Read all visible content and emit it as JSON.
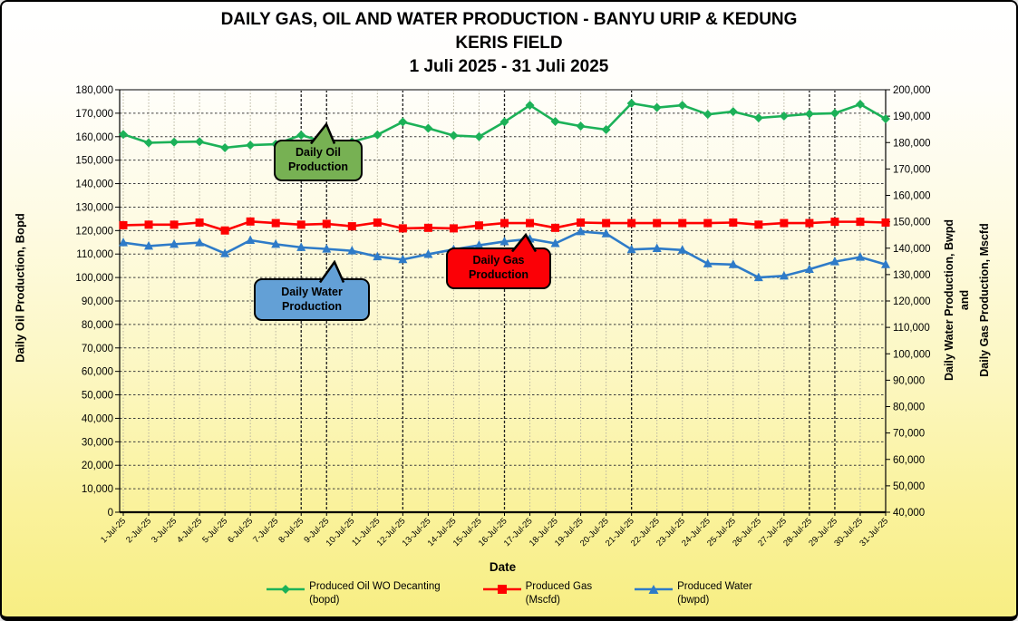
{
  "title": {
    "line1": "DAILY  GAS, OIL AND WATER PRODUCTION  - BANYU URIP & KEDUNG",
    "line2": "KERIS FIELD",
    "line3": "1 Juli 2025 - 31 Juli 2025"
  },
  "chart_data": {
    "type": "line",
    "title": "DAILY GAS, OIL AND WATER PRODUCTION - BANYU URIP & KEDUNG KERIS FIELD, 1 Juli 2025 - 31 Juli 2025",
    "xlabel": "Date",
    "x_categories": [
      "1-Jul-25",
      "2-Jul-25",
      "3-Jul-25",
      "4-Jul-25",
      "5-Jul-25",
      "6-Jul-25",
      "7-Jul-25",
      "8-Jul-25",
      "9-Jul-25",
      "10-Jul-25",
      "11-Jul-25",
      "12-Jul-25",
      "13-Jul-25",
      "14-Jul-25",
      "15-Jul-25",
      "16-Jul-25",
      "17-Jul-25",
      "18-Jul-25",
      "19-Jul-25",
      "20-Jul-25",
      "21-Jul-25",
      "22-Jul-25",
      "23-Jul-25",
      "24-Jul-25",
      "25-Jul-25",
      "26-Jul-25",
      "27-Jul-25",
      "28-Jul-25",
      "29-Jul-25",
      "30-Jul-25",
      "31-Jul-25"
    ],
    "left_axis": {
      "label": "Daily Oil Production, Bopd",
      "min": 0,
      "max": 180000,
      "step": 10000
    },
    "right_axis": {
      "label_parts": [
        "Daily Water  Production, Bwpd",
        "and",
        "Daily Gas Production, Mscfd"
      ],
      "min": 40000,
      "max": 200000,
      "step": 10000
    },
    "series": [
      {
        "name": "Produced Oil WO Decanting (bopd)",
        "axis": "left",
        "color": "#1cb158",
        "marker": "diamond",
        "values": [
          161000,
          157400,
          157700,
          157900,
          155300,
          156400,
          156800,
          160700,
          157500,
          157800,
          160800,
          166300,
          163600,
          160500,
          160000,
          166300,
          173400,
          166500,
          164500,
          163000,
          174200,
          172400,
          173400,
          169500,
          170700,
          168000,
          168800,
          169700,
          170000,
          173800,
          167600
        ]
      },
      {
        "name": "Produced Gas (Mscfd)",
        "axis": "right",
        "color": "#fe0000",
        "marker": "square",
        "values": [
          148700,
          148900,
          148900,
          149700,
          146700,
          150100,
          149500,
          148900,
          149200,
          148300,
          149700,
          147500,
          147700,
          147500,
          148600,
          149500,
          149500,
          147700,
          149700,
          149500,
          149500,
          149500,
          149500,
          149500,
          149700,
          148900,
          149500,
          149500,
          150000,
          150000,
          149700
        ]
      },
      {
        "name": "Produced Water (bwpd)",
        "axis": "right",
        "color": "#2e7bc8",
        "marker": "triangle",
        "values": [
          142100,
          140800,
          141500,
          142100,
          138000,
          143000,
          141500,
          140300,
          139700,
          139000,
          136800,
          135700,
          137700,
          139500,
          141100,
          142500,
          143500,
          141800,
          146300,
          145500,
          139500,
          139900,
          139300,
          134100,
          133800,
          128900,
          129500,
          132000,
          134900,
          136600,
          133800
        ]
      }
    ],
    "annotations": [
      {
        "id": "oil",
        "lines": [
          "Daily Oil",
          "Production"
        ],
        "fill": "#77b153"
      },
      {
        "id": "gas",
        "lines": [
          "Daily Gas",
          "Production"
        ],
        "fill": "#fb0006"
      },
      {
        "id": "water",
        "lines": [
          "Daily Water",
          "Production"
        ],
        "fill": "#63a0d6"
      }
    ],
    "layout": {
      "legend_position": "bottom",
      "grid": true,
      "dark_vertical_indices": [
        7,
        8,
        11,
        15,
        20,
        27,
        28
      ]
    }
  },
  "legend": {
    "entries": [
      {
        "label": "Produced Oil WO Decanting",
        "unit": "(bopd)"
      },
      {
        "label": "Produced Gas",
        "unit": "(Mscfd)"
      },
      {
        "label": "Produced Water",
        "unit": "(bwpd)"
      }
    ]
  }
}
